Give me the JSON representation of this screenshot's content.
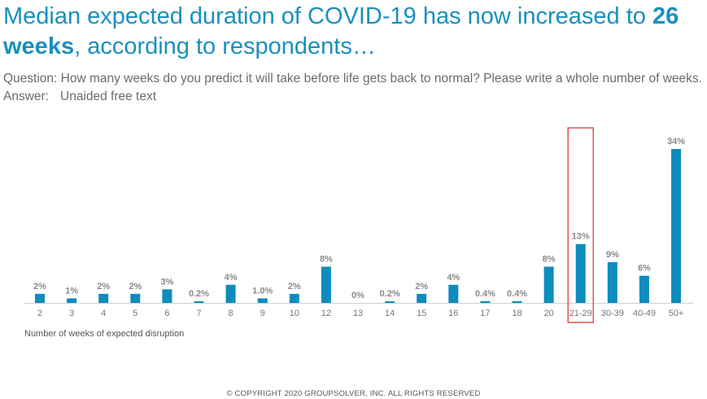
{
  "title": {
    "part1": "Median expected duration of COVID-19 has now increased to ",
    "bold1": "26",
    "part2": " ",
    "bold2": "weeks",
    "part3": ", according to respondents…"
  },
  "question": "Question: How many weeks do you predict it will take before life gets back to normal? Please write a whole number of weeks.",
  "answer_label": "Answer:",
  "answer_text": "Unaided free text",
  "copyright": "© COPYRIGHT 2020 GROUPSOLVER, INC. ALL RIGHTS RESERVED",
  "colors": {
    "bar": "#0e8cbd",
    "highlight": "#e23b3b",
    "title": "#1a8fc0"
  },
  "chart_data": {
    "type": "bar",
    "title": "",
    "xlabel": "Number of weeks of expected disruption",
    "ylabel": "",
    "categories": [
      "2",
      "3",
      "4",
      "5",
      "6",
      "7",
      "8",
      "9",
      "10",
      "12",
      "13",
      "14",
      "15",
      "16",
      "17",
      "18",
      "20",
      "21-29",
      "30-39",
      "40-49",
      "50+"
    ],
    "values": [
      2,
      1,
      2,
      2,
      3,
      0.2,
      4,
      1.0,
      2,
      8,
      0,
      0.2,
      2,
      4,
      0.4,
      0.4,
      8,
      13,
      9,
      6,
      34
    ],
    "labels": [
      "2%",
      "1%",
      "2%",
      "2%",
      "3%",
      "0.2%",
      "4%",
      "1.0%",
      "2%",
      "8%",
      "0%",
      "0.2%",
      "2%",
      "4%",
      "0.4%",
      "0.4%",
      "8%",
      "13%",
      "9%",
      "6%",
      "34%"
    ],
    "highlighted_category": "21-29",
    "ylim": [
      0,
      34
    ],
    "grid": false,
    "legend": "none"
  }
}
